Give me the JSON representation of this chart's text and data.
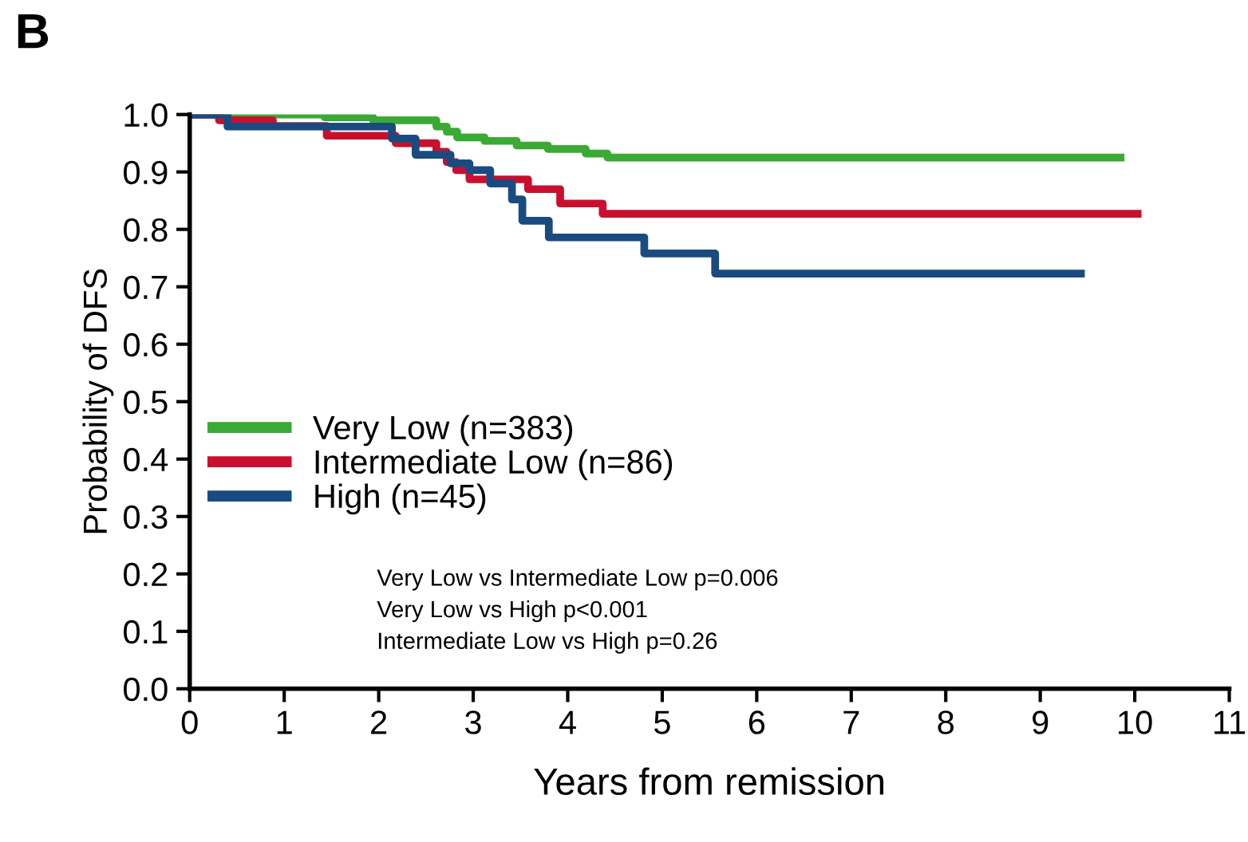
{
  "chart_data": {
    "type": "step",
    "title": "B",
    "xlabel": "Years from remission",
    "ylabel": "Probability of DFS",
    "series": [
      {
        "name": "Very Low (n=383)",
        "color": "#3aaa35",
        "x": [
          0,
          1.43,
          1.94,
          2.61,
          2.72,
          2.83,
          3.12,
          3.46,
          3.79,
          4.19,
          4.42,
          9.85
        ],
        "values": [
          1.0,
          0.995,
          0.99,
          0.979,
          0.97,
          0.96,
          0.954,
          0.946,
          0.94,
          0.932,
          0.925,
          0.925
        ]
      },
      {
        "name": "Intermediate Low (n=86)",
        "color": "#c8102e",
        "x": [
          0,
          0.31,
          0.88,
          1.45,
          2.18,
          2.61,
          2.72,
          2.82,
          2.96,
          3.58,
          3.92,
          4.37,
          10.03
        ],
        "values": [
          1.0,
          0.99,
          0.98,
          0.963,
          0.95,
          0.935,
          0.917,
          0.903,
          0.887,
          0.87,
          0.845,
          0.827,
          0.827
        ]
      },
      {
        "name": "High (n=45)",
        "color": "#1a4b80",
        "x": [
          0,
          0.4,
          2.14,
          2.39,
          2.76,
          2.96,
          3.18,
          3.41,
          3.52,
          3.8,
          4.81,
          5.56,
          9.43
        ],
        "values": [
          1.0,
          0.979,
          0.958,
          0.93,
          0.915,
          0.903,
          0.88,
          0.852,
          0.815,
          0.786,
          0.758,
          0.723,
          0.723
        ]
      }
    ],
    "xlim": [
      0,
      11
    ],
    "xticks": [
      0,
      1,
      2,
      3,
      4,
      5,
      6,
      7,
      8,
      9,
      10,
      11
    ],
    "ylim": [
      0,
      1.0
    ],
    "yticks": [
      {
        "value": 0,
        "label": "0.0"
      },
      0.1,
      0.2,
      0.3,
      0.4,
      0.5,
      0.6,
      0.7,
      0.8,
      0.9,
      {
        "value": 1.0,
        "label": "1.0"
      }
    ],
    "grid": false,
    "legend": "left",
    "annotations": [
      "Very Low vs Intermediate Low p=0.006",
      "Very Low vs High p<0.001",
      "Intermediate Low vs High p=0.26"
    ]
  }
}
